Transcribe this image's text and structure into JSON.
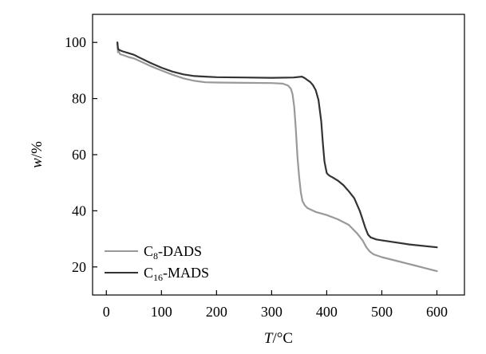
{
  "chart_data": {
    "type": "line",
    "xlabel_var": "T",
    "xlabel_unit": "/°C",
    "ylabel_var": "w",
    "ylabel_unit": "/%",
    "xlim": [
      -25,
      650
    ],
    "ylim": [
      10,
      110
    ],
    "xticks": [
      0,
      100,
      200,
      300,
      400,
      500,
      600
    ],
    "yticks": [
      20,
      40,
      60,
      80,
      100
    ],
    "grid": false,
    "legend_position": "bottom-left",
    "series": [
      {
        "name_base": "C",
        "name_sub": "8",
        "name_rest": "-DADS",
        "color": "#999999",
        "x": [
          20,
          21,
          22,
          25,
          30,
          40,
          50,
          60,
          80,
          100,
          120,
          140,
          160,
          180,
          200,
          250,
          300,
          320,
          330,
          335,
          338,
          341,
          344,
          347,
          350,
          353,
          356,
          360,
          365,
          370,
          380,
          400,
          420,
          440,
          455,
          465,
          472,
          478,
          485,
          500,
          520,
          540,
          560,
          580,
          600
        ],
        "y": [
          100,
          96.5,
          97,
          95.8,
          95.5,
          94.8,
          94.3,
          93.4,
          91.6,
          90,
          88.5,
          87.2,
          86.3,
          85.8,
          85.7,
          85.6,
          85.5,
          85.3,
          84.6,
          83.5,
          81.5,
          77,
          69,
          59,
          52,
          46.5,
          43.5,
          42,
          41,
          40.5,
          39.6,
          38.5,
          37,
          35,
          32,
          29.5,
          27,
          25.5,
          24.5,
          23.5,
          22.5,
          21.5,
          20.5,
          19.5,
          18.5
        ]
      },
      {
        "name_base": "C",
        "name_sub": "16",
        "name_rest": "-MADS",
        "color": "#333333",
        "x": [
          20,
          21,
          22,
          25,
          30,
          40,
          50,
          60,
          80,
          100,
          120,
          140,
          160,
          180,
          200,
          250,
          300,
          340,
          355,
          360,
          365,
          370,
          375,
          380,
          385,
          390,
          393,
          396,
          400,
          403,
          406,
          410,
          420,
          430,
          440,
          450,
          460,
          465,
          470,
          475,
          480,
          490,
          500,
          550,
          600
        ],
        "y": [
          100,
          98,
          97.5,
          97.2,
          96.8,
          96.2,
          95.6,
          94.6,
          92.7,
          91,
          89.6,
          88.6,
          88,
          87.8,
          87.6,
          87.5,
          87.4,
          87.5,
          87.8,
          87.3,
          86.6,
          85.9,
          84.8,
          83,
          79.5,
          72,
          64,
          57.5,
          53.5,
          52.8,
          52.4,
          52,
          50.8,
          49.2,
          47,
          44.5,
          40,
          37,
          34,
          31.5,
          30.5,
          29.8,
          29.5,
          28,
          27
        ]
      }
    ]
  }
}
